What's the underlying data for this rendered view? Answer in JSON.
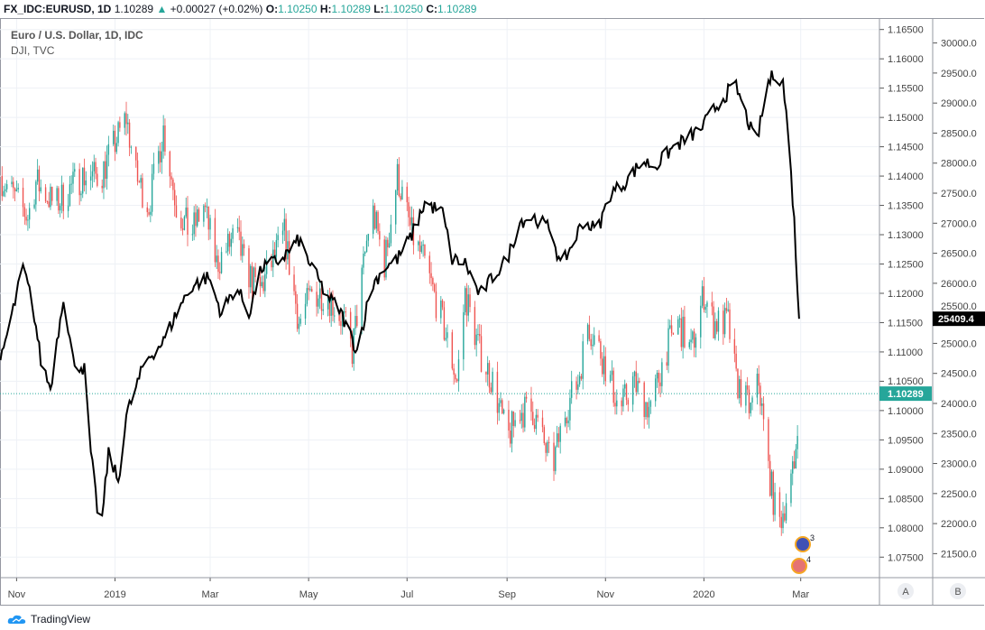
{
  "header": {
    "symbol": "FX_IDC:EURUSD, 1D",
    "last": "1.10289",
    "change": "+0.00027 (+0.02%)",
    "o_label": "O:",
    "o": "1.10250",
    "h_label": "H:",
    "h": "1.10289",
    "l_label": "L:",
    "l": "1.10250",
    "c_label": "C:",
    "c": "1.10289"
  },
  "legend": {
    "title": "Euro / U.S. Dollar, 1D, IDC",
    "overlay": "DJI, TVC"
  },
  "brand": "TradingView",
  "scale_buttons": [
    "A",
    "B"
  ],
  "event_badges": [
    "3",
    "4"
  ],
  "colors": {
    "up": "#26a69a",
    "down": "#ef5350",
    "dji": "#000000",
    "grid": "#eef1f6"
  },
  "chart_data": {
    "type": "candlestick+line",
    "start_date": "2018-10-22",
    "x_ticks": [
      "Nov",
      "2019",
      "Mar",
      "May",
      "Jul",
      "Sep",
      "Nov",
      "2020",
      "Mar"
    ],
    "x_tick_days": [
      10,
      71,
      130,
      191,
      252,
      314,
      375,
      436,
      496
    ],
    "axis_a": {
      "name": "EURUSD",
      "ylim": [
        1.0715,
        1.1668
      ],
      "ticks": [
        "1.16500",
        "1.16000",
        "1.15500",
        "1.15000",
        "1.14500",
        "1.14000",
        "1.13500",
        "1.13000",
        "1.12500",
        "1.12000",
        "1.11500",
        "1.11000",
        "1.10500",
        "1.10000",
        "1.09500",
        "1.09000",
        "1.08500",
        "1.08000",
        "1.07500"
      ],
      "last_label": "1.10289",
      "last": 1.10289
    },
    "axis_b": {
      "name": "DJI",
      "ylim": [
        21100,
        30400
      ],
      "ticks": [
        "30000.0",
        "29500.0",
        "29000.0",
        "28500.0",
        "28000.0",
        "27500.0",
        "27000.0",
        "26500.0",
        "26000.0",
        "25500.0",
        "25000.0",
        "24500.0",
        "24000.0",
        "23500.0",
        "23000.0",
        "22500.0",
        "22000.0",
        "21500.0"
      ],
      "last_label": "25409.4",
      "last": 25409.4
    },
    "eurusd_close": [
      [
        0,
        1.14
      ],
      [
        17,
        1.133
      ],
      [
        22,
        1.139
      ],
      [
        34,
        1.135
      ],
      [
        50,
        1.14
      ],
      [
        62,
        1.14
      ],
      [
        70,
        1.145
      ],
      [
        78,
        1.15
      ],
      [
        84,
        1.14
      ],
      [
        92,
        1.135
      ],
      [
        101,
        1.148
      ],
      [
        109,
        1.135
      ],
      [
        118,
        1.13
      ],
      [
        126,
        1.135
      ],
      [
        134,
        1.125
      ],
      [
        146,
        1.13
      ],
      [
        151,
        1.125
      ],
      [
        160,
        1.12
      ],
      [
        168,
        1.125
      ],
      [
        176,
        1.13
      ],
      [
        185,
        1.115
      ],
      [
        193,
        1.12
      ],
      [
        202,
        1.12
      ],
      [
        213,
        1.115
      ],
      [
        218,
        1.11
      ],
      [
        230,
        1.135
      ],
      [
        238,
        1.125
      ],
      [
        246,
        1.14
      ],
      [
        255,
        1.13
      ],
      [
        263,
        1.125
      ],
      [
        274,
        1.115
      ],
      [
        283,
        1.105
      ],
      [
        288,
        1.12
      ],
      [
        297,
        1.11
      ],
      [
        305,
        1.105
      ],
      [
        314,
        1.095
      ],
      [
        322,
        1.1
      ],
      [
        330,
        1.1
      ],
      [
        342,
        1.09
      ],
      [
        350,
        1.1
      ],
      [
        358,
        1.105
      ],
      [
        364,
        1.115
      ],
      [
        372,
        1.11
      ],
      [
        384,
        1.1
      ],
      [
        392,
        1.105
      ],
      [
        403,
        1.1
      ],
      [
        412,
        1.11
      ],
      [
        420,
        1.115
      ],
      [
        428,
        1.11
      ],
      [
        436,
        1.12
      ],
      [
        442,
        1.115
      ],
      [
        451,
        1.115
      ],
      [
        456,
        1.105
      ],
      [
        465,
        1.1
      ],
      [
        470,
        1.105
      ],
      [
        476,
        1.09
      ],
      [
        482,
        1.08
      ],
      [
        487,
        1.085
      ],
      [
        492,
        1.09
      ],
      [
        495,
        1.10289
      ]
    ],
    "dji_close": [
      [
        0,
        24720
      ],
      [
        6,
        25340
      ],
      [
        14,
        26260
      ],
      [
        20,
        25650
      ],
      [
        25,
        24720
      ],
      [
        31,
        24250
      ],
      [
        39,
        25800
      ],
      [
        45,
        24720
      ],
      [
        52,
        24570
      ],
      [
        56,
        23180
      ],
      [
        62,
        21800
      ],
      [
        67,
        23180
      ],
      [
        73,
        22700
      ],
      [
        78,
        23800
      ],
      [
        90,
        24720
      ],
      [
        101,
        25030
      ],
      [
        109,
        25500
      ],
      [
        118,
        25950
      ],
      [
        129,
        26100
      ],
      [
        137,
        25500
      ],
      [
        146,
        25950
      ],
      [
        154,
        25500
      ],
      [
        162,
        26260
      ],
      [
        174,
        26400
      ],
      [
        185,
        26720
      ],
      [
        193,
        26260
      ],
      [
        202,
        25800
      ],
      [
        210,
        25570
      ],
      [
        221,
        24880
      ],
      [
        230,
        25950
      ],
      [
        238,
        26260
      ],
      [
        246,
        26400
      ],
      [
        255,
        26800
      ],
      [
        263,
        27340
      ],
      [
        274,
        27180
      ],
      [
        280,
        26400
      ],
      [
        288,
        26340
      ],
      [
        297,
        25800
      ],
      [
        305,
        26100
      ],
      [
        314,
        26400
      ],
      [
        322,
        27030
      ],
      [
        330,
        27110
      ],
      [
        342,
        26880
      ],
      [
        347,
        26260
      ],
      [
        353,
        26570
      ],
      [
        361,
        27030
      ],
      [
        370,
        26880
      ],
      [
        378,
        27490
      ],
      [
        386,
        27650
      ],
      [
        398,
        28030
      ],
      [
        406,
        27950
      ],
      [
        417,
        28260
      ],
      [
        426,
        28420
      ],
      [
        434,
        28570
      ],
      [
        442,
        28880
      ],
      [
        451,
        29190
      ],
      [
        456,
        29270
      ],
      [
        465,
        28570
      ],
      [
        468,
        28260
      ],
      [
        476,
        29340
      ],
      [
        480,
        29500
      ],
      [
        485,
        29340
      ],
      [
        488,
        28570
      ],
      [
        492,
        27030
      ],
      [
        495,
        25409.4
      ]
    ]
  }
}
